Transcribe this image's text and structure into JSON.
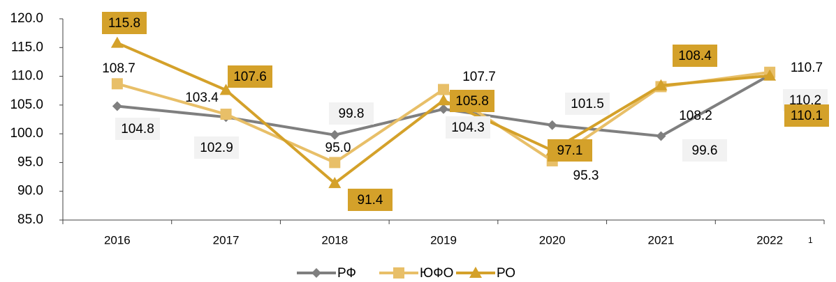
{
  "chart_data": {
    "type": "line",
    "categories": [
      "2016",
      "2017",
      "2018",
      "2019",
      "2020",
      "2021",
      "2022"
    ],
    "series": [
      {
        "name": "РФ",
        "color": "#7f7f7f",
        "marker": "diamond",
        "label_background": "#f2f2f2",
        "values": [
          104.8,
          102.9,
          99.8,
          104.3,
          101.5,
          99.6,
          110.2
        ],
        "value_labels": [
          "104.8",
          "102.9",
          "99.8",
          "104.3",
          "101.5",
          "99.6",
          "110.2"
        ]
      },
      {
        "name": "ЮФО",
        "color": "#e8bf68",
        "marker": "square",
        "values": [
          108.7,
          103.4,
          95.0,
          107.7,
          95.3,
          108.2,
          110.7
        ],
        "value_labels": [
          "108.7",
          "103.4",
          "95.0",
          "107.7",
          "95.3",
          "108.2",
          "110.7"
        ]
      },
      {
        "name": "РО",
        "color": "#d4a12a",
        "marker": "triangle",
        "label_background": "#d4a12a",
        "values": [
          115.8,
          107.6,
          91.4,
          105.8,
          97.1,
          108.4,
          110.1
        ],
        "value_labels": [
          "115.8",
          "107.6",
          "91.4",
          "105.8",
          "97.1",
          "108.4",
          "110.1"
        ]
      }
    ],
    "ylim": [
      85,
      120
    ],
    "yticks": [
      {
        "value": 85,
        "label": "85.0"
      },
      {
        "value": 90,
        "label": "90.0"
      },
      {
        "value": 95,
        "label": "95.0"
      },
      {
        "value": 100,
        "label": "100.0"
      },
      {
        "value": 105,
        "label": "105.0"
      },
      {
        "value": 110,
        "label": "110.0"
      },
      {
        "value": 115,
        "label": "115.0"
      },
      {
        "value": 120,
        "label": "120.0"
      }
    ],
    "footnote": "1",
    "legend": "bottom"
  }
}
